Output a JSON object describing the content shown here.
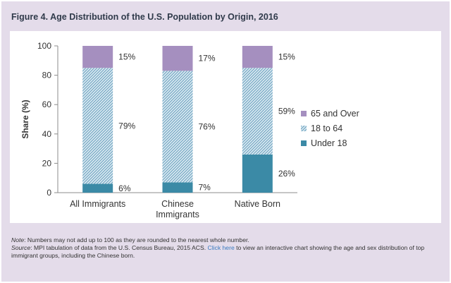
{
  "title": "Figure 4. Age Distribution of the U.S. Population by Origin, 2016",
  "notes": {
    "note_label": "Note",
    "note_text": ": Numbers may not add up to 100 as they are rounded to the nearest whole number.",
    "source_label": "Source",
    "source_text_1": ": MPI tabulation of data from the U.S. Census Bureau, 2015 ACS. ",
    "source_link": "Click here",
    "source_text_2": " to view an interactive chart showing the age and sex distribution of top immigrant groups, including the Chinese born."
  },
  "colors": {
    "frame_bg": "#e4dcea",
    "over65": "#a58fbf",
    "age18to64_base": "#dcebf2",
    "age18to64_hatch": "#6aa0bf",
    "under18": "#3b8aa6"
  },
  "chart_data": {
    "type": "bar",
    "stacked": true,
    "categories": [
      [
        "All Immigrants"
      ],
      [
        "Chinese",
        "Immigrants"
      ],
      [
        "Native Born"
      ]
    ],
    "series": [
      {
        "name": "Under 18",
        "values": [
          6,
          7,
          26
        ],
        "labels": [
          "6%",
          "7%",
          "26%"
        ],
        "color": "#3b8aa6"
      },
      {
        "name": "18 to 64",
        "values": [
          79,
          76,
          59
        ],
        "labels": [
          "79%",
          "76%",
          "59%"
        ],
        "color": "#6aa0bf",
        "pattern": "diagonal-hatch"
      },
      {
        "name": "65 and Over",
        "values": [
          15,
          17,
          15
        ],
        "labels": [
          "15%",
          "17%",
          "15%"
        ],
        "color": "#a58fbf"
      }
    ],
    "ylabel": "Share (%)",
    "xlabel": "",
    "ylim": [
      0,
      100
    ],
    "yticks": [
      0,
      20,
      40,
      60,
      80,
      100
    ],
    "grid": false,
    "legend_position": "right",
    "legend_order": [
      "65 and Over",
      "18 to 64",
      "Under 18"
    ]
  }
}
